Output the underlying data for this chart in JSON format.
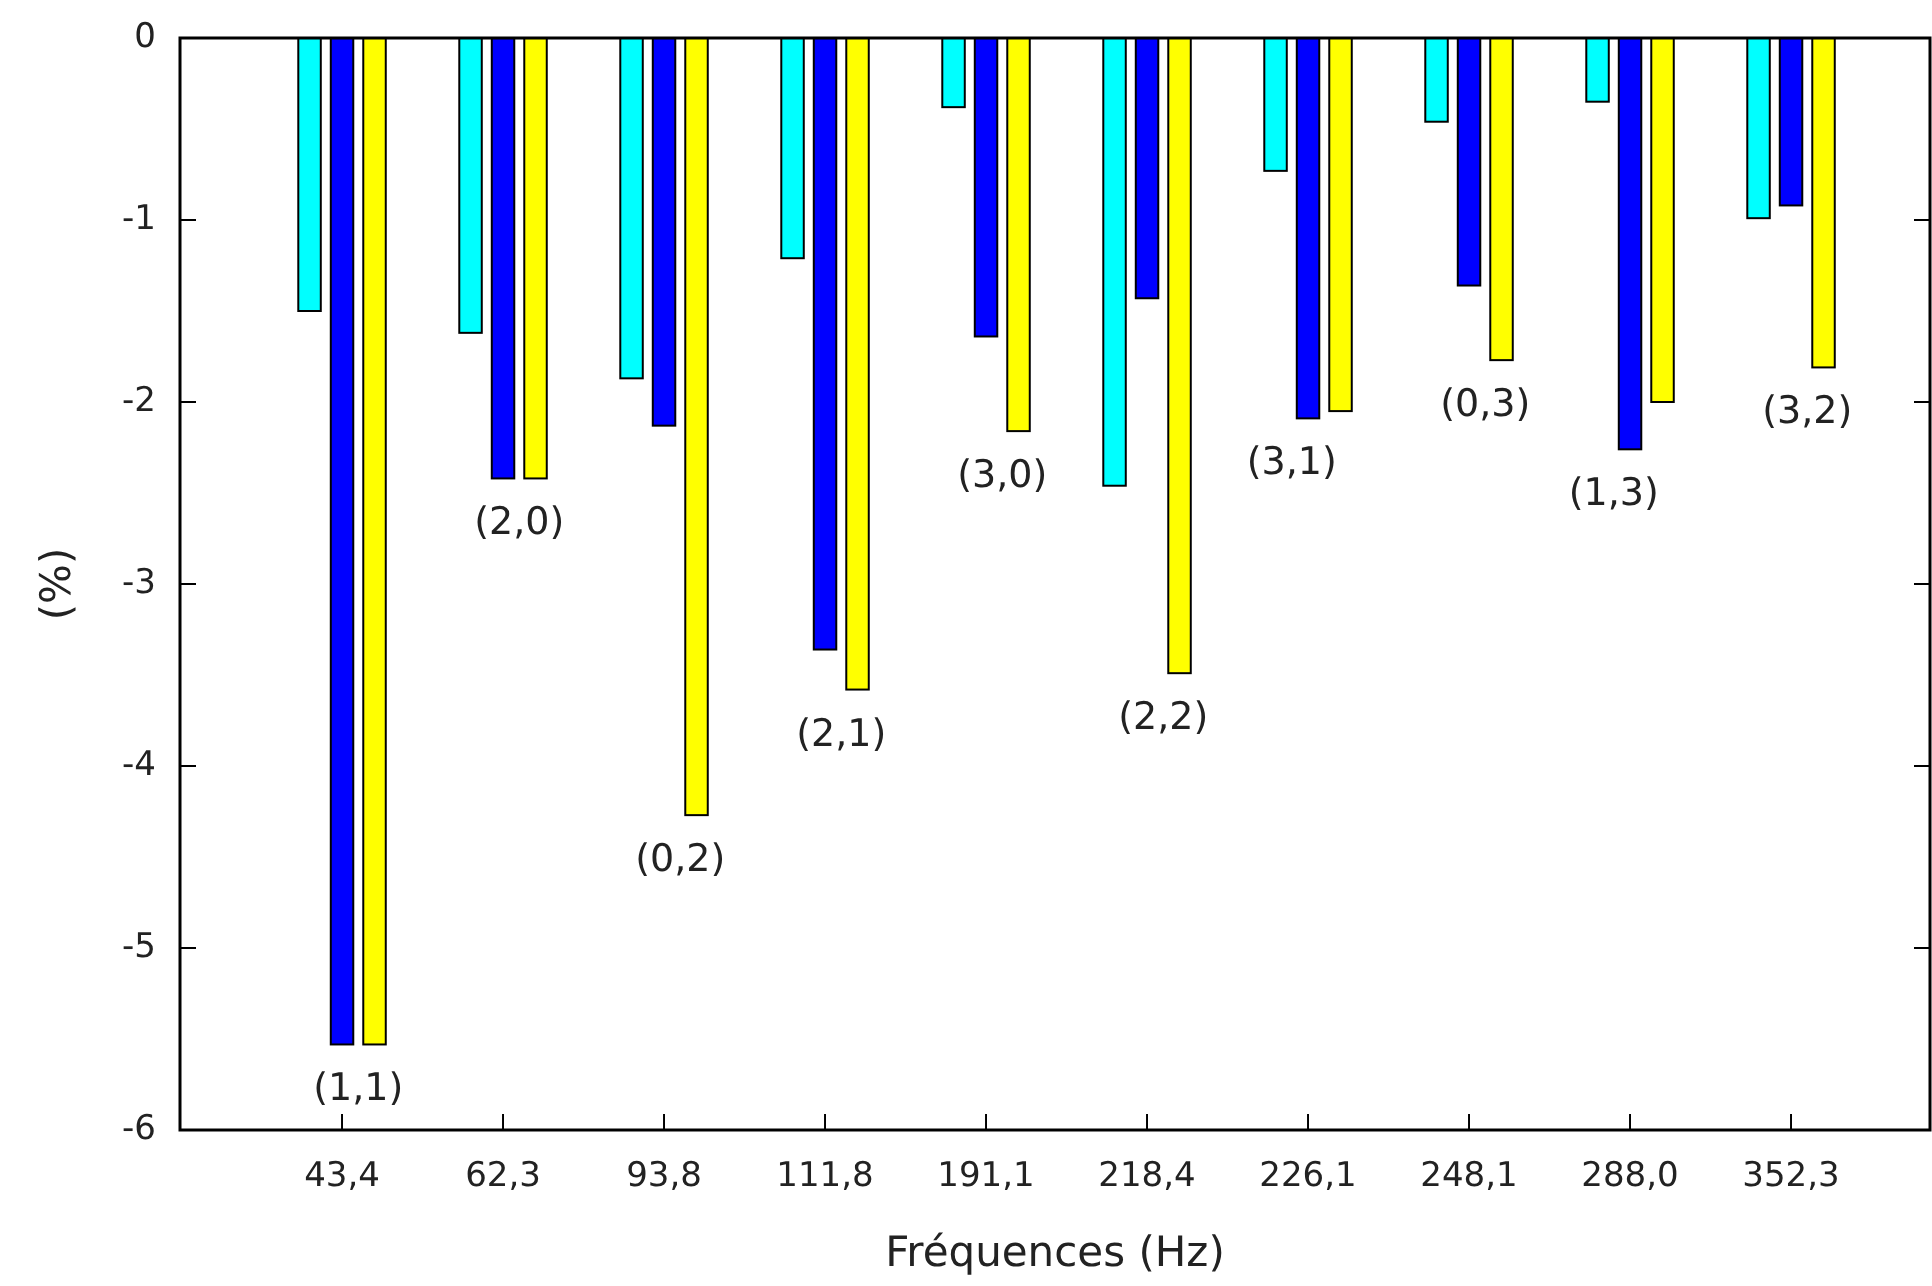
{
  "chart_data": {
    "type": "bar",
    "xlabel": "Fréquences (Hz)",
    "ylabel": "(%)",
    "categories": [
      "43,4",
      "62,3",
      "93,8",
      "111,8",
      "191,1",
      "218,4",
      "226,1",
      "248,1",
      "288,0",
      "352,3"
    ],
    "series": [
      {
        "color": "#00ffff",
        "values": [
          -1.5,
          -1.62,
          -1.87,
          -1.21,
          -0.38,
          -2.46,
          -0.73,
          -0.46,
          -0.35,
          -0.99
        ]
      },
      {
        "color": "#0000ff",
        "values": [
          -5.53,
          -2.42,
          -2.13,
          -3.36,
          -1.64,
          -1.43,
          -2.09,
          -1.36,
          -2.26,
          -0.92
        ]
      },
      {
        "color": "#ffff00",
        "values": [
          -5.53,
          -2.42,
          -4.27,
          -3.58,
          -2.16,
          -3.49,
          -2.05,
          -1.77,
          -2.0,
          -1.81
        ]
      }
    ],
    "ylim": [
      -6,
      0
    ],
    "yticks": [
      -6,
      -5,
      -4,
      -3,
      -2,
      -1,
      0
    ],
    "grid": false,
    "annotations": [
      "(1,1)",
      "(2,0)",
      "(0,2)",
      "(2,1)",
      "(3,0)",
      "(2,2)",
      "(3,1)",
      "(0,3)",
      "(1,3)",
      "(3,2)"
    ]
  }
}
